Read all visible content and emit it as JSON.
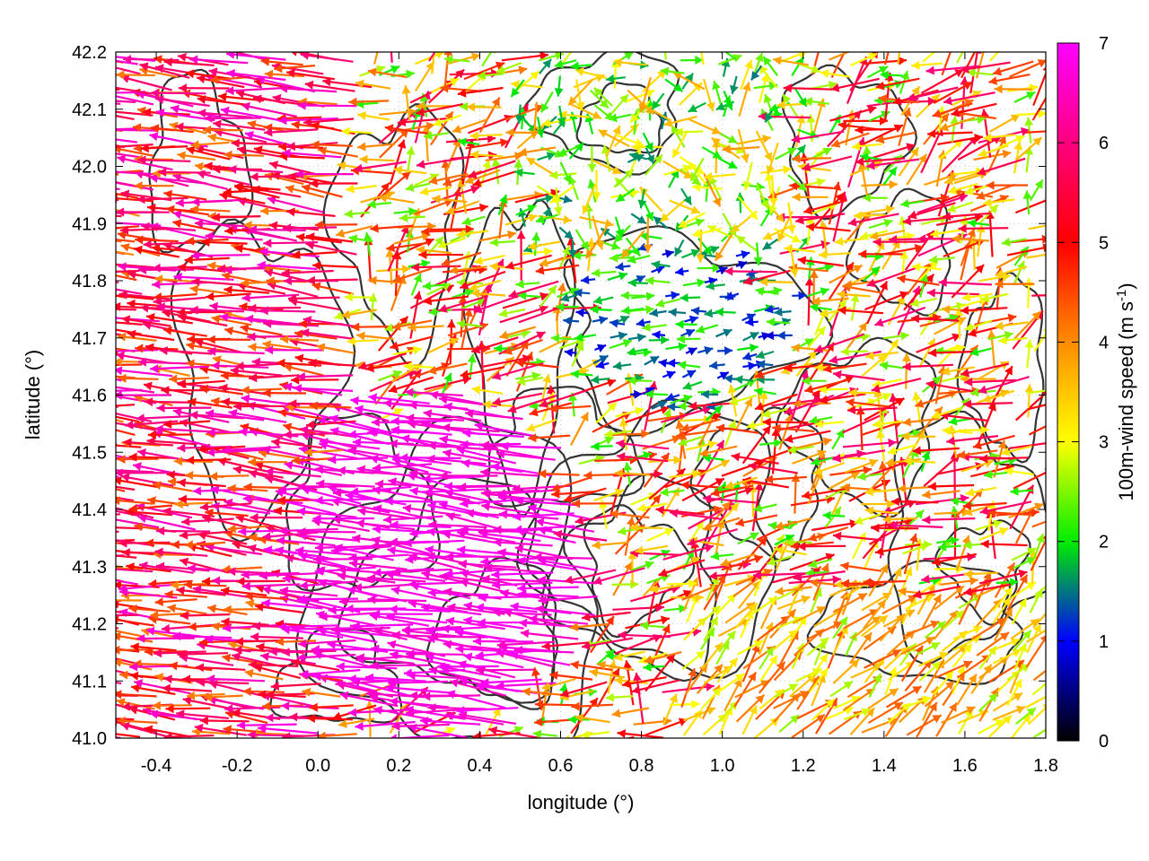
{
  "chart_data": {
    "type": "vector-field",
    "xlabel": "longitude (°)",
    "ylabel": "latitude (°)",
    "xlim": [
      -0.5,
      1.8
    ],
    "ylim": [
      41.0,
      42.2
    ],
    "xticks": [
      "-0.4",
      "-0.2",
      "0.0",
      "0.2",
      "0.4",
      "0.6",
      "0.8",
      "1.0",
      "1.2",
      "1.4",
      "1.6",
      "1.8"
    ],
    "xtick_values": [
      -0.4,
      -0.2,
      0.0,
      0.2,
      0.4,
      0.6,
      0.8,
      1.0,
      1.2,
      1.4,
      1.6,
      1.8
    ],
    "yticks": [
      "41.0",
      "41.1",
      "41.2",
      "41.3",
      "41.4",
      "41.5",
      "41.6",
      "41.7",
      "41.8",
      "41.9",
      "42.0",
      "42.1",
      "42.2"
    ],
    "ytick_values": [
      41.0,
      41.1,
      41.2,
      41.3,
      41.4,
      41.5,
      41.6,
      41.7,
      41.8,
      41.9,
      42.0,
      42.1,
      42.2
    ],
    "grid": true,
    "colorbar": {
      "label_prefix": "100m-wind speed (m s",
      "label_sup": "-1",
      "label_suffix": ")",
      "range": [
        0,
        7
      ],
      "ticks": [
        "0",
        "1",
        "2",
        "3",
        "4",
        "5",
        "6",
        "7"
      ],
      "tick_values": [
        0,
        1,
        2,
        3,
        4,
        5,
        6,
        7
      ],
      "colors": [
        "#000000",
        "#0000ff",
        "#00ee00",
        "#ffff00",
        "#ff8c00",
        "#ff0000",
        "#ff00ff"
      ]
    },
    "contour_color": "#333333"
  }
}
